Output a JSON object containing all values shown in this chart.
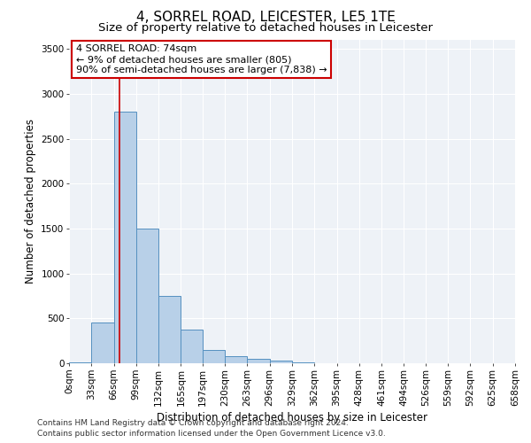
{
  "title": "4, SORREL ROAD, LEICESTER, LE5 1TE",
  "subtitle": "Size of property relative to detached houses in Leicester",
  "xlabel": "Distribution of detached houses by size in Leicester",
  "ylabel": "Number of detached properties",
  "bar_color": "#b8d0e8",
  "bar_edge_color": "#5590c0",
  "bar_heights": [
    10,
    450,
    2800,
    1500,
    750,
    375,
    150,
    75,
    50,
    30,
    5,
    2,
    1,
    0,
    0,
    0,
    0,
    0,
    0,
    0
  ],
  "bin_edges": [
    0,
    33,
    66,
    99,
    132,
    165,
    197,
    230,
    263,
    296,
    329,
    362,
    395,
    428,
    461,
    494,
    526,
    559,
    592,
    625,
    658
  ],
  "x_tick_labels": [
    "0sqm",
    "33sqm",
    "66sqm",
    "99sqm",
    "132sqm",
    "165sqm",
    "197sqm",
    "230sqm",
    "263sqm",
    "296sqm",
    "329sqm",
    "362sqm",
    "395sqm",
    "428sqm",
    "461sqm",
    "494sqm",
    "526sqm",
    "559sqm",
    "592sqm",
    "625sqm",
    "658sqm"
  ],
  "ylim": [
    0,
    3600
  ],
  "yticks": [
    0,
    500,
    1000,
    1500,
    2000,
    2500,
    3000,
    3500
  ],
  "property_size": 74,
  "red_line_color": "#cc0000",
  "annotation_text": "4 SORREL ROAD: 74sqm\n← 9% of detached houses are smaller (805)\n90% of semi-detached houses are larger (7,838) →",
  "annotation_box_color": "#cc0000",
  "footer_line1": "Contains HM Land Registry data © Crown copyright and database right 2024.",
  "footer_line2": "Contains public sector information licensed under the Open Government Licence v3.0.",
  "bg_color": "#eef2f7",
  "grid_color": "#ffffff",
  "title_fontsize": 11,
  "subtitle_fontsize": 9.5,
  "axis_label_fontsize": 8.5,
  "tick_fontsize": 7.5,
  "footer_fontsize": 6.5,
  "annotation_fontsize": 8
}
